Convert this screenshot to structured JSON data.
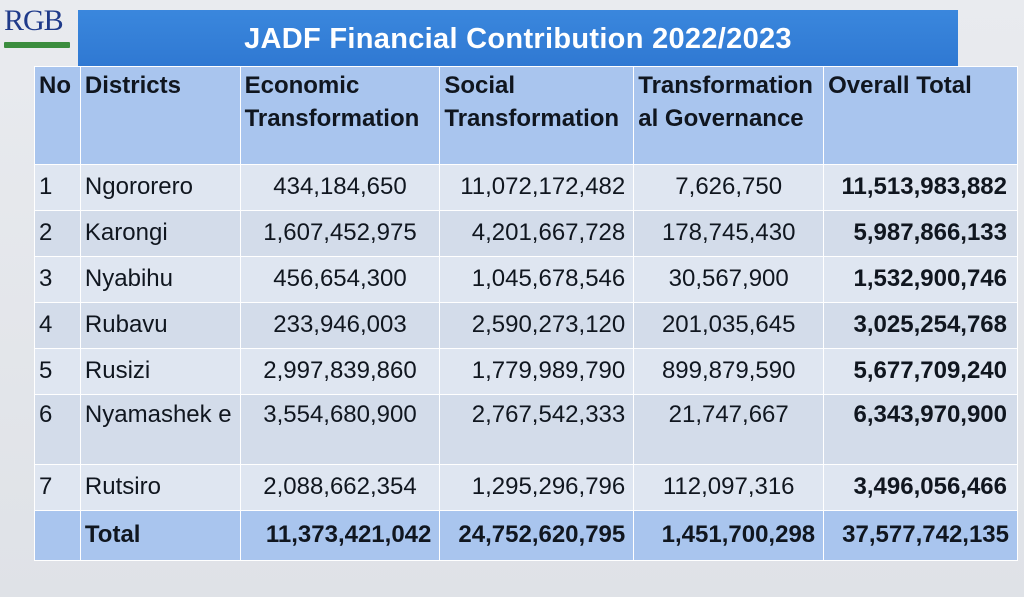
{
  "logo": {
    "text": "RGB"
  },
  "title": "JADF Financial Contribution 2022/2023",
  "headers": {
    "no": "No",
    "districts": "Districts",
    "economic": "Economic Transformation",
    "social": "Social Transformation",
    "governance": "Transformation al Governance",
    "overall": "Overall Total"
  },
  "rows": [
    {
      "no": "1",
      "district": "Ngororero",
      "economic": "434,184,650",
      "social": "11,072,172,482",
      "governance": "7,626,750",
      "overall": "11,513,983,882"
    },
    {
      "no": "2",
      "district": "Karongi",
      "economic": "1,607,452,975",
      "social": "4,201,667,728",
      "governance": "178,745,430",
      "overall": "5,987,866,133"
    },
    {
      "no": "3",
      "district": "Nyabihu",
      "economic": "456,654,300",
      "social": "1,045,678,546",
      "governance": "30,567,900",
      "overall": "1,532,900,746"
    },
    {
      "no": "4",
      "district": "Rubavu",
      "economic": "233,946,003",
      "social": "2,590,273,120",
      "governance": "201,035,645",
      "overall": "3,025,254,768"
    },
    {
      "no": "5",
      "district": "Rusizi",
      "economic": "2,997,839,860",
      "social": "1,779,989,790",
      "governance": "899,879,590",
      "overall": "5,677,709,240"
    },
    {
      "no": "6",
      "district": "Nyamashek e",
      "economic": "3,554,680,900",
      "social": "2,767,542,333",
      "governance": "21,747,667",
      "overall": "6,343,970,900"
    },
    {
      "no": "7",
      "district": "Rutsiro",
      "economic": "2,088,662,354",
      "social": "1,295,296,796",
      "governance": "112,097,316",
      "overall": "3,496,056,466"
    }
  ],
  "total": {
    "label": "Total",
    "economic": "11,373,421,042",
    "social": "24,752,620,795",
    "governance": "1,451,700,298",
    "overall": "37,577,742,135"
  }
}
